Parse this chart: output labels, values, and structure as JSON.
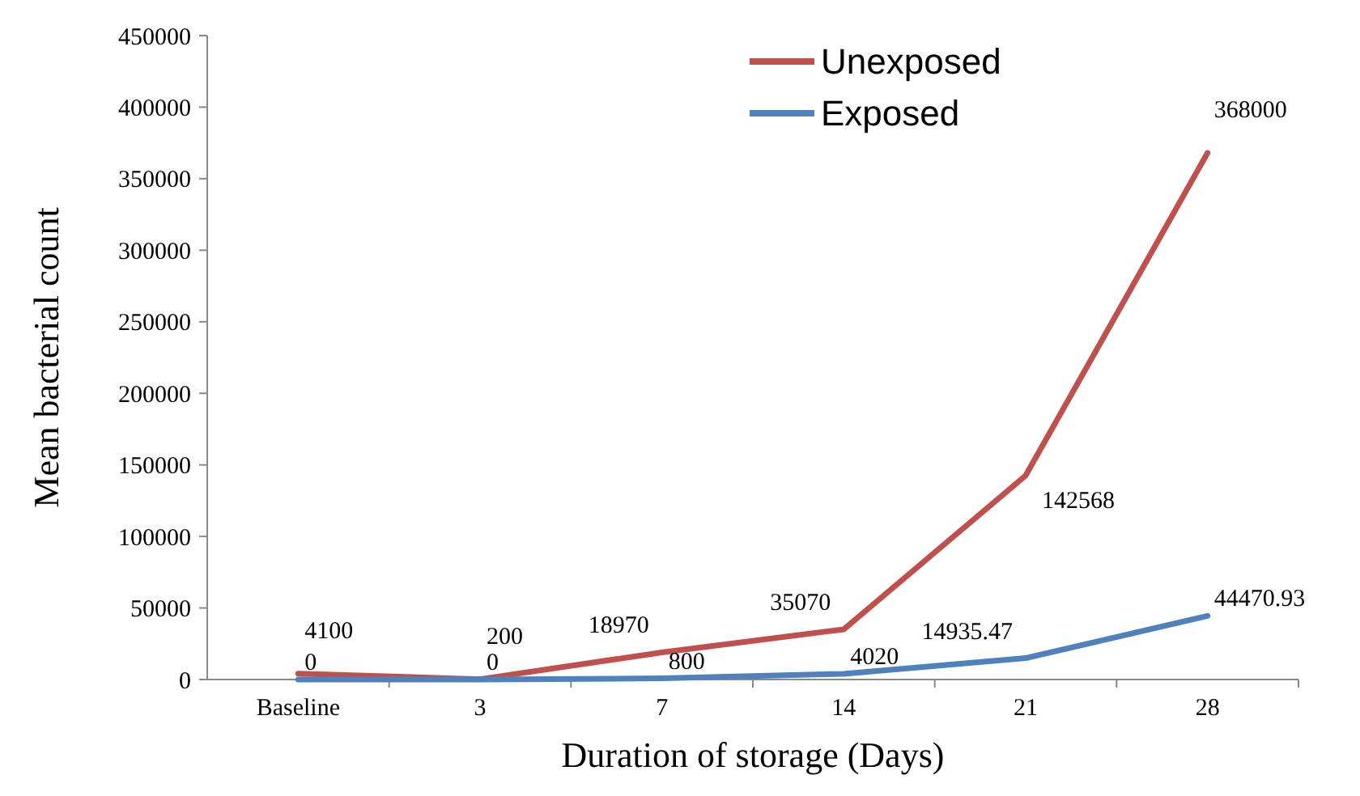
{
  "chart_data": {
    "type": "line",
    "xlabel": "Duration of storage (Days)",
    "ylabel": "Mean bacterial count",
    "categories": [
      "Baseline",
      "3",
      "7",
      "14",
      "21",
      "28"
    ],
    "series": [
      {
        "name": "Unexposed",
        "color": "#c0504d",
        "values": [
          4100,
          200,
          18970,
          35070,
          142568,
          368000
        ]
      },
      {
        "name": "Exposed",
        "color": "#4f81bd",
        "values": [
          0,
          0,
          800,
          4020,
          14935.47,
          44470.93
        ]
      }
    ],
    "ylim": [
      0,
      450000
    ],
    "yticks": [
      0,
      50000,
      100000,
      150000,
      200000,
      250000,
      300000,
      350000,
      400000,
      450000
    ],
    "grid": false,
    "legend": "top",
    "marker": "none",
    "line_style": "solid",
    "data_labels": true
  }
}
